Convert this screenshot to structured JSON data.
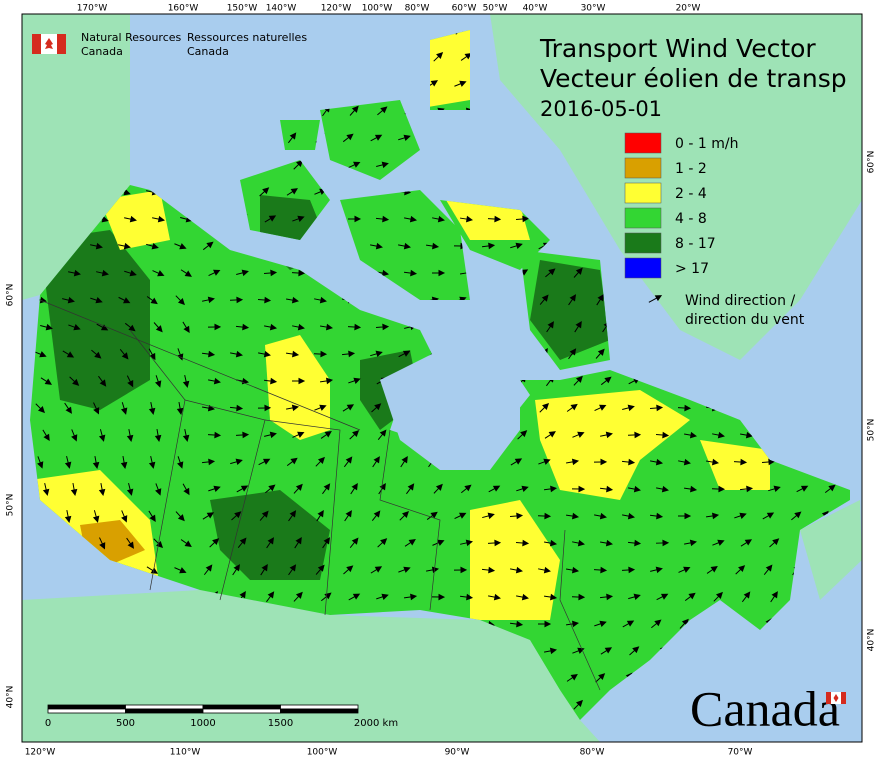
{
  "header": {
    "title_en": "Transport Wind Vector",
    "title_fr": "Vecteur éolien de transp",
    "date": "2016-05-01"
  },
  "agency": {
    "en": [
      "Natural Resources",
      "Canada"
    ],
    "fr": [
      "Ressources naturelles",
      "Canada"
    ]
  },
  "legend": {
    "items": [
      {
        "label": "0 - 1 m/h",
        "color": "#ff0000"
      },
      {
        "label": "1 - 2",
        "color": "#d9a000"
      },
      {
        "label": "2 - 4",
        "color": "#ffff33"
      },
      {
        "label": "4 - 8",
        "color": "#33d633"
      },
      {
        "label": "8 - 17",
        "color": "#1a7a1a"
      },
      {
        "label": "> 17",
        "color": "#0000ff"
      }
    ],
    "wind_label": [
      "Wind direction /",
      "direction du vent"
    ]
  },
  "graticule": {
    "top": [
      "170°W",
      "160°W",
      "150°W",
      "140°W",
      "120°W",
      "100°W",
      "80°W",
      "60°W",
      "50°W",
      "40°W",
      "30°W",
      "20°W"
    ],
    "bottom": [
      "120°W",
      "110°W",
      "100°W",
      "90°W",
      "80°W",
      "70°W"
    ],
    "left": [
      "60°N",
      "50°N",
      "40°N"
    ],
    "right": [
      "60°N",
      "50°N",
      "40°N"
    ]
  },
  "scale_bar": {
    "labels": [
      "0",
      "500",
      "1000",
      "1500",
      "2000 km"
    ]
  },
  "wordmark": "Canada"
}
